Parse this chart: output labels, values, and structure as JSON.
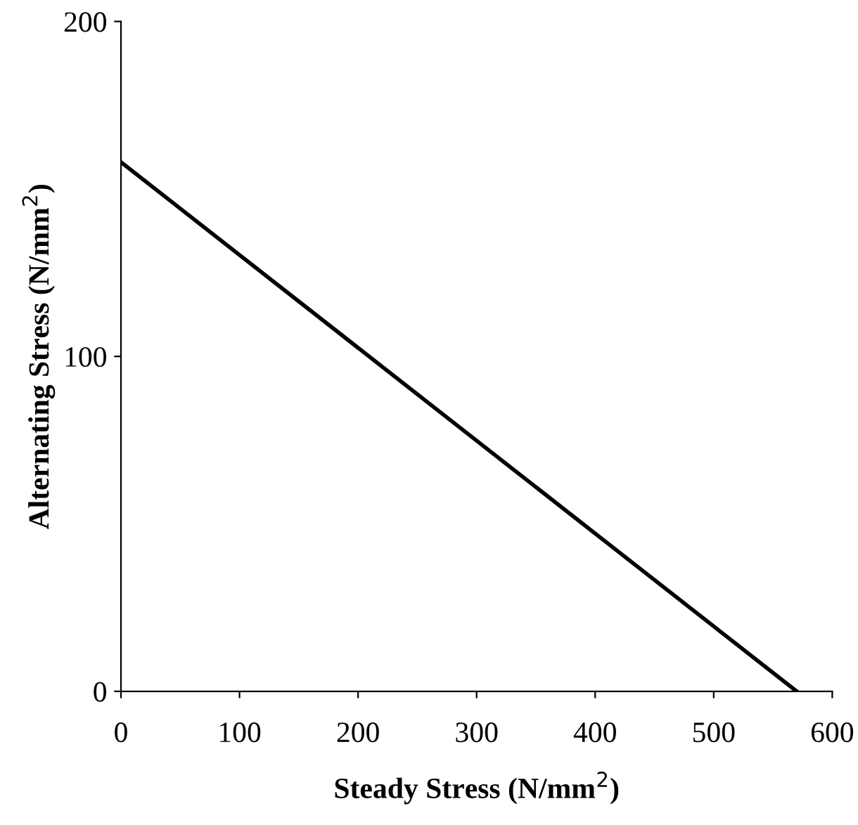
{
  "chart_data": {
    "type": "line",
    "x": [
      0,
      570
    ],
    "series": [
      {
        "color": "#000000",
        "values": [
          158,
          0
        ]
      }
    ],
    "xlabel": "Steady Stress (N/mm$^{2}$)",
    "ylabel": "Alternating Stress (N/mm$^{2}$)",
    "xlim": [
      0,
      600
    ],
    "ylim": [
      0,
      200
    ],
    "xticks": [
      0,
      100,
      200,
      300,
      400,
      500,
      600
    ],
    "yticks": [
      0,
      100,
      200
    ],
    "grid": false,
    "marker": "none",
    "line_style": "solid"
  }
}
